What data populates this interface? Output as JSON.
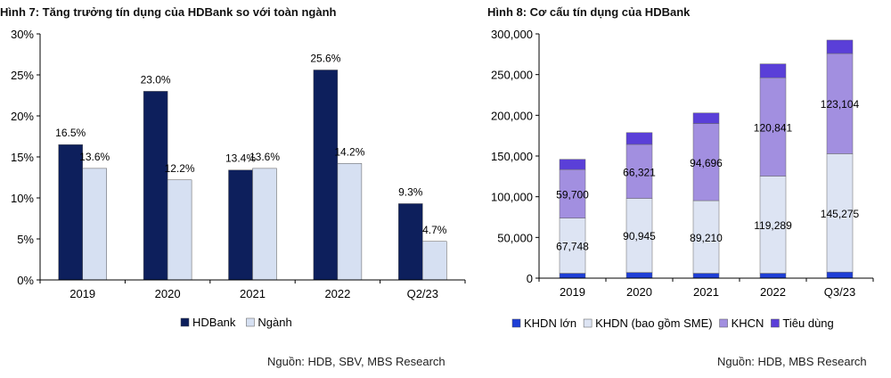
{
  "left": {
    "title": "Hình 7: Tăng trưởng tín dụng của HDBank so với toàn ngành",
    "source": "Nguồn: HDB, SBV, MBS Research"
  },
  "right": {
    "title": "Hình 8: Cơ cấu tín dụng của HDBank",
    "source": "Nguồn: HDB, MBS Research"
  },
  "chart_data": [
    {
      "type": "bar",
      "title": "Hình 7: Tăng trưởng tín dụng của HDBank so với toàn ngành",
      "categories": [
        "2019",
        "2020",
        "2021",
        "2022",
        "Q2/23"
      ],
      "series": [
        {
          "name": "HDBank",
          "color": "#0d1f5c",
          "values": [
            16.5,
            23.0,
            13.4,
            25.6,
            9.3
          ],
          "labels": [
            "16.5%",
            "23.0%",
            "13.4%",
            "25.6%",
            "9.3%"
          ]
        },
        {
          "name": "Ngành",
          "color": "#d6e0f2",
          "values": [
            13.6,
            12.2,
            13.6,
            14.2,
            4.7
          ],
          "labels": [
            "13.6%",
            "12.2%",
            "13.6%",
            "14.2%",
            "4.7%"
          ]
        }
      ],
      "ylim": [
        0,
        30
      ],
      "yticks": [
        "0%",
        "5%",
        "10%",
        "15%",
        "20%",
        "25%",
        "30%"
      ],
      "grid": false,
      "legend": "bottom"
    },
    {
      "type": "bar",
      "stacked": true,
      "title": "Hình 8: Cơ cấu tín dụng của HDBank",
      "categories": [
        "2019",
        "2020",
        "2021",
        "2022",
        "Q3/23"
      ],
      "series": [
        {
          "name": "KHDN lớn",
          "color": "#1f3fd6",
          "values": [
            6000,
            7000,
            6000,
            6000,
            7500
          ],
          "labels": [
            "",
            "",
            "",
            "",
            ""
          ]
        },
        {
          "name": "KHDN (bao gồm SME)",
          "color": "#dde4f3",
          "values": [
            67748,
            90945,
            89210,
            119289,
            145275
          ],
          "labels": [
            "67,748",
            "90,945",
            "89,210",
            "119,289",
            "145,275"
          ]
        },
        {
          "name": "KHCN",
          "color": "#a28fe0",
          "values": [
            59700,
            66321,
            94696,
            120841,
            123104
          ],
          "labels": [
            "59,700",
            "66,321",
            "94,696",
            "120,841",
            "123,104"
          ]
        },
        {
          "name": "Tiêu dùng",
          "color": "#5a3fd8",
          "values": [
            12500,
            14500,
            13000,
            17000,
            16500
          ],
          "labels": [
            "",
            "",
            "",
            "",
            ""
          ]
        }
      ],
      "ylim": [
        0,
        300000
      ],
      "yticks": [
        "0",
        "50,000",
        "100,000",
        "150,000",
        "200,000",
        "250,000",
        "300,000"
      ],
      "grid": false,
      "legend": "bottom"
    }
  ]
}
